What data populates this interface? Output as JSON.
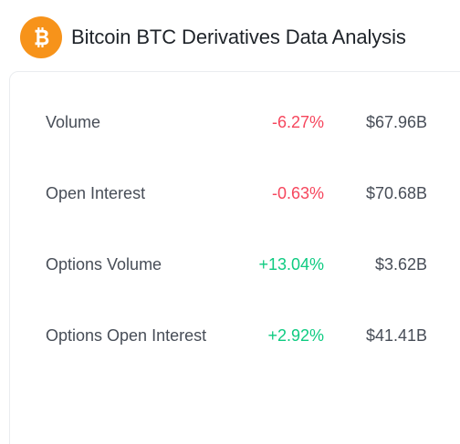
{
  "header": {
    "title": "Bitcoin BTC Derivatives Data Analysis",
    "icon": "bitcoin-icon",
    "icon_color": "#f7931a"
  },
  "metrics": [
    {
      "label": "Volume",
      "change": "-6.27%",
      "value": "$67.96B",
      "direction": "negative"
    },
    {
      "label": "Open Interest",
      "change": "-0.63%",
      "value": "$70.68B",
      "direction": "negative"
    },
    {
      "label": "Options Volume",
      "change": "+13.04%",
      "value": "$3.62B",
      "direction": "positive"
    },
    {
      "label": "Options Open Interest",
      "change": "+2.92%",
      "value": "$41.41B",
      "direction": "positive"
    }
  ],
  "colors": {
    "negative": "#f6465d",
    "positive": "#0ecb81"
  }
}
